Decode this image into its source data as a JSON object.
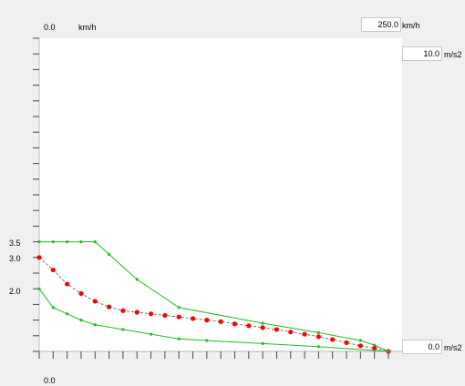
{
  "speed_axis": {
    "min_label": "0.0",
    "unit_label": "km/h",
    "max_value": "250.0",
    "max_unit": "km/h",
    "bottom_min_label": "0.0"
  },
  "accel_axis": {
    "max_value": "10.0",
    "max_unit": "m/s2",
    "min_value": "0.0",
    "min_unit": "m/s2"
  },
  "left_labels": [
    "3.5",
    "3.0",
    "2.0"
  ],
  "colors": {
    "upper": "#22bb22",
    "lower": "#22bb22",
    "mid": "#ff0000",
    "plot_bg": "#ffffff"
  },
  "chart_data": {
    "type": "line",
    "xlim": [
      0,
      250
    ],
    "ylim": [
      0,
      10
    ],
    "series": [
      {
        "x": [
          0,
          10,
          20,
          30,
          40,
          50,
          70,
          100,
          160,
          200,
          230,
          240,
          250
        ],
        "y": [
          3.5,
          3.5,
          3.5,
          3.5,
          3.5,
          3.1,
          2.3,
          1.4,
          0.9,
          0.6,
          0.35,
          0.2,
          0.0
        ]
      },
      {
        "x": [
          0,
          10,
          20,
          30,
          40,
          50,
          60,
          70,
          80,
          90,
          100,
          110,
          120,
          130,
          140,
          150,
          160,
          170,
          180,
          190,
          200,
          210,
          220,
          230,
          240,
          250
        ],
        "y": [
          3.0,
          2.6,
          2.15,
          1.85,
          1.6,
          1.42,
          1.3,
          1.25,
          1.2,
          1.15,
          1.1,
          1.05,
          1.0,
          0.95,
          0.88,
          0.82,
          0.76,
          0.7,
          0.62,
          0.55,
          0.47,
          0.38,
          0.28,
          0.18,
          0.1,
          0.0
        ]
      },
      {
        "x": [
          0,
          10,
          20,
          30,
          40,
          60,
          80,
          100,
          120,
          160,
          200,
          250
        ],
        "y": [
          2.0,
          1.4,
          1.2,
          1.0,
          0.85,
          0.7,
          0.55,
          0.4,
          0.35,
          0.25,
          0.15,
          0.0
        ]
      }
    ]
  }
}
